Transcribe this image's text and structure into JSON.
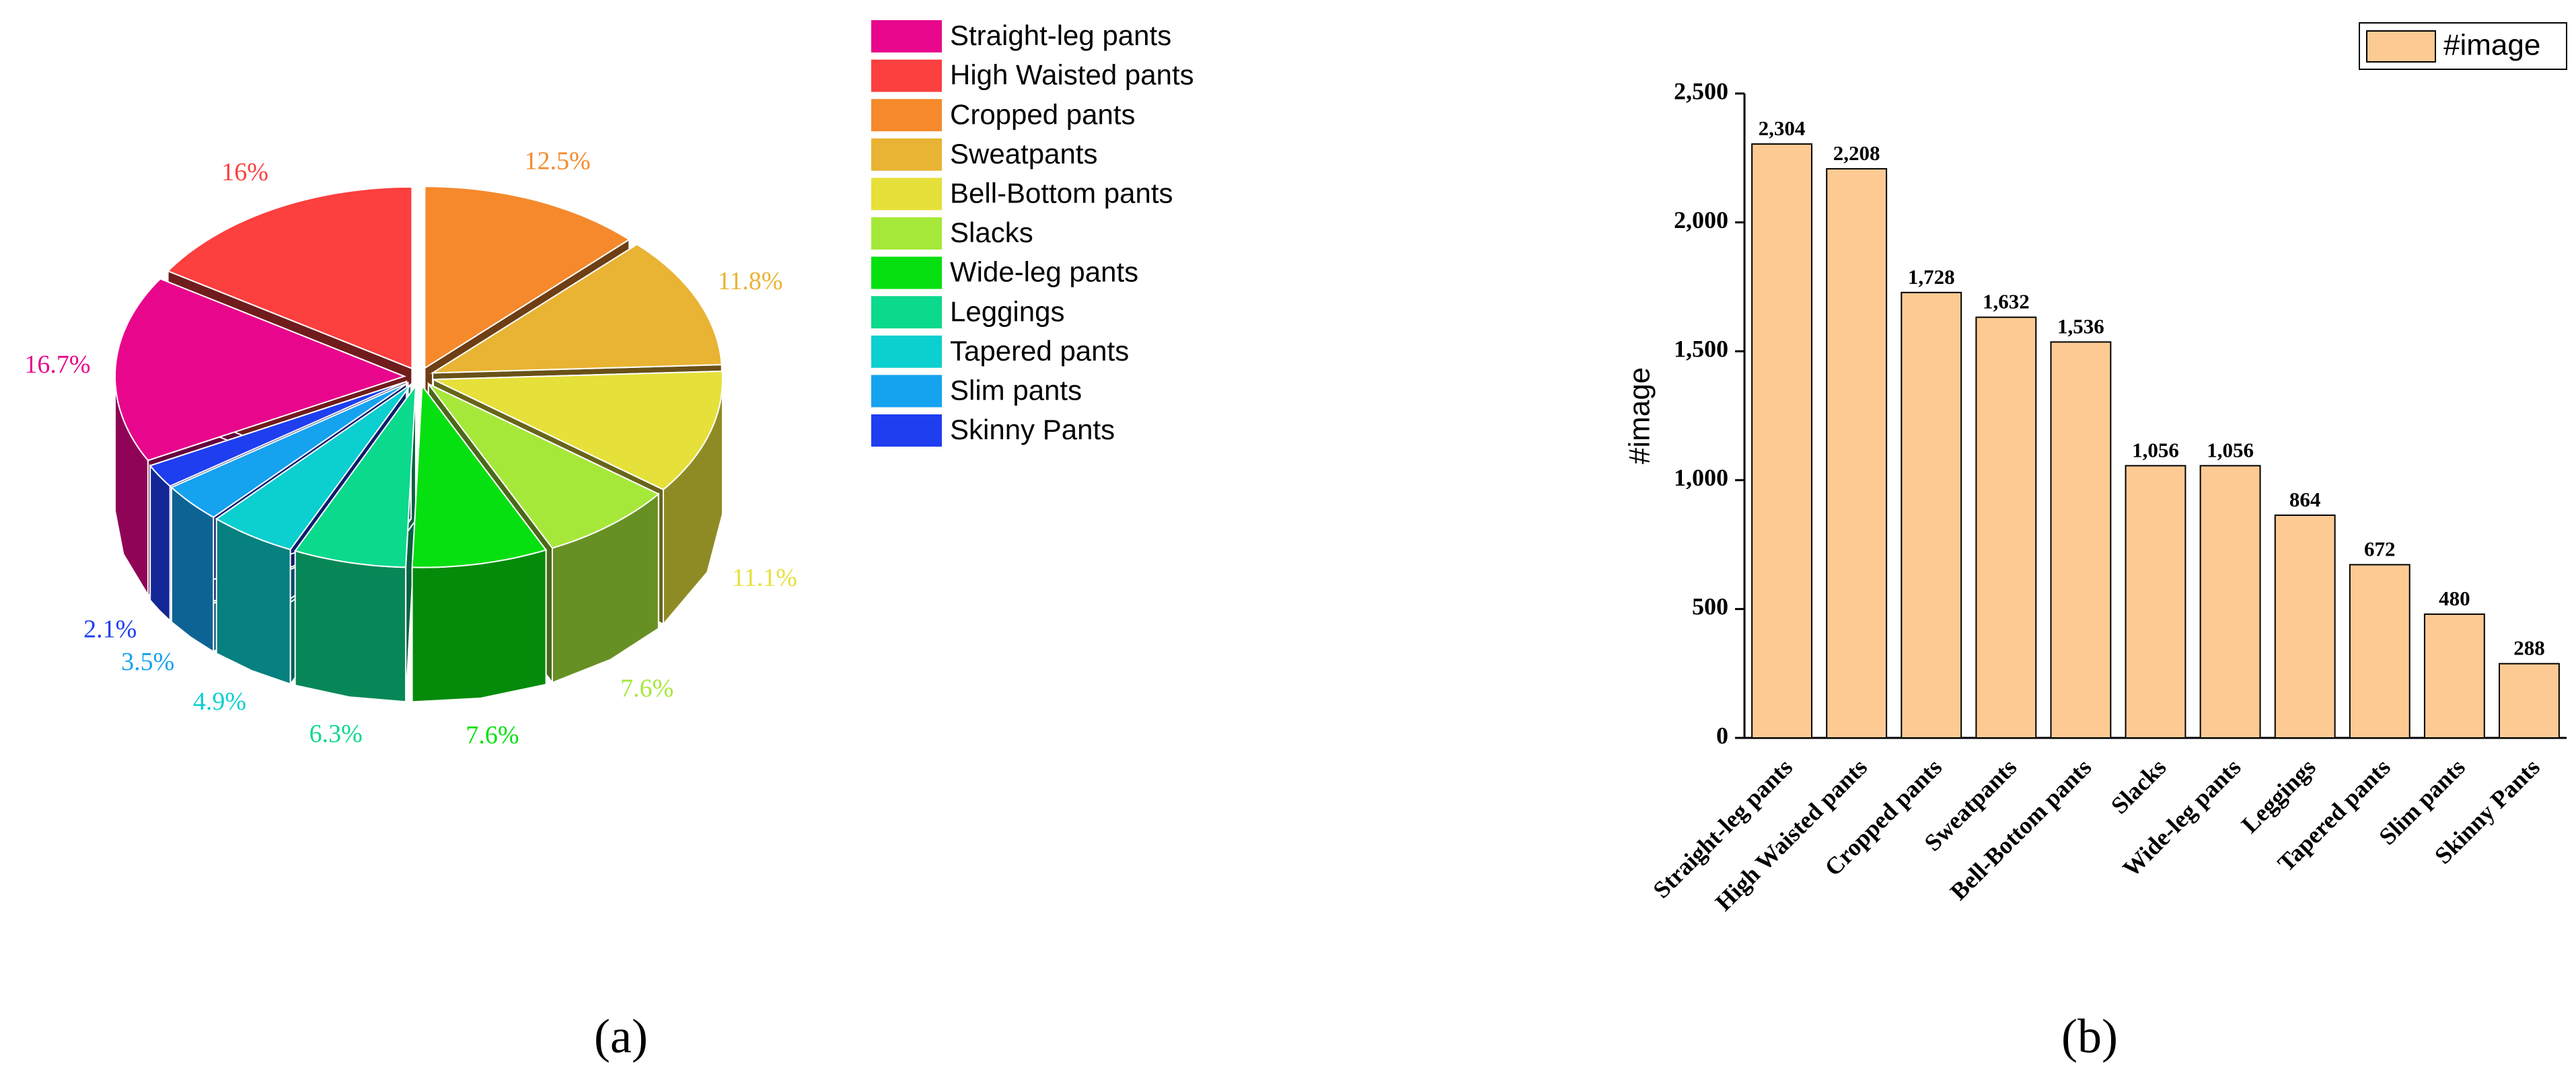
{
  "chart_data": [
    {
      "type": "pie3d",
      "caption": "(a)",
      "categories": [
        "Straight-leg pants",
        "High Waisted pants",
        "Cropped pants",
        "Sweatpants",
        "Bell-Bottom pants",
        "Slacks",
        "Wide-leg pants",
        "Leggings",
        "Tapered pants",
        "Slim pants",
        "Skinny Pants"
      ],
      "values": [
        16.7,
        16,
        12.5,
        11.8,
        11.1,
        7.6,
        7.6,
        6.3,
        4.9,
        3.5,
        2.1
      ],
      "value_labels": [
        "16.7%",
        "16%",
        "12.5%",
        "11.8%",
        "11.1%",
        "7.6%",
        "7.6%",
        "6.3%",
        "4.9%",
        "3.5%",
        "2.1%"
      ],
      "colors": [
        "#e8068c",
        "#fc3f3f",
        "#f5892c",
        "#e9b333",
        "#e6e03a",
        "#a6e83a",
        "#07e010",
        "#0bd98c",
        "#0ccfcf",
        "#15a2ef",
        "#1e3ef0"
      ],
      "legend": "right"
    },
    {
      "type": "bar",
      "caption": "(b)",
      "y_label": "#image",
      "categories": [
        "Straight-leg pants",
        "High Waisted pants",
        "Cropped pants",
        "Sweatpants",
        "Bell-Bottom pants",
        "Slacks",
        "Wide-leg pants",
        "Leggings",
        "Tapered pants",
        "Slim pants",
        "Skinny Pants"
      ],
      "series": [
        {
          "name": "#image",
          "color": "#fdca93",
          "values": [
            2304,
            2208,
            1728,
            1632,
            1536,
            1056,
            1056,
            864,
            672,
            480,
            288
          ],
          "value_labels": [
            "2,304",
            "2,208",
            "1,728",
            "1,632",
            "1,536",
            "1,056",
            "1,056",
            "864",
            "672",
            "480",
            "288"
          ]
        }
      ],
      "ylim": [
        0,
        2500
      ],
      "yticks": [
        0,
        500,
        {
          "value": 1000,
          "label": "1,000"
        },
        {
          "value": 1500,
          "label": "1,500"
        },
        {
          "value": 2000,
          "label": "2,000"
        },
        {
          "value": 2500,
          "label": "2,500"
        }
      ],
      "legend": "top-right"
    }
  ]
}
